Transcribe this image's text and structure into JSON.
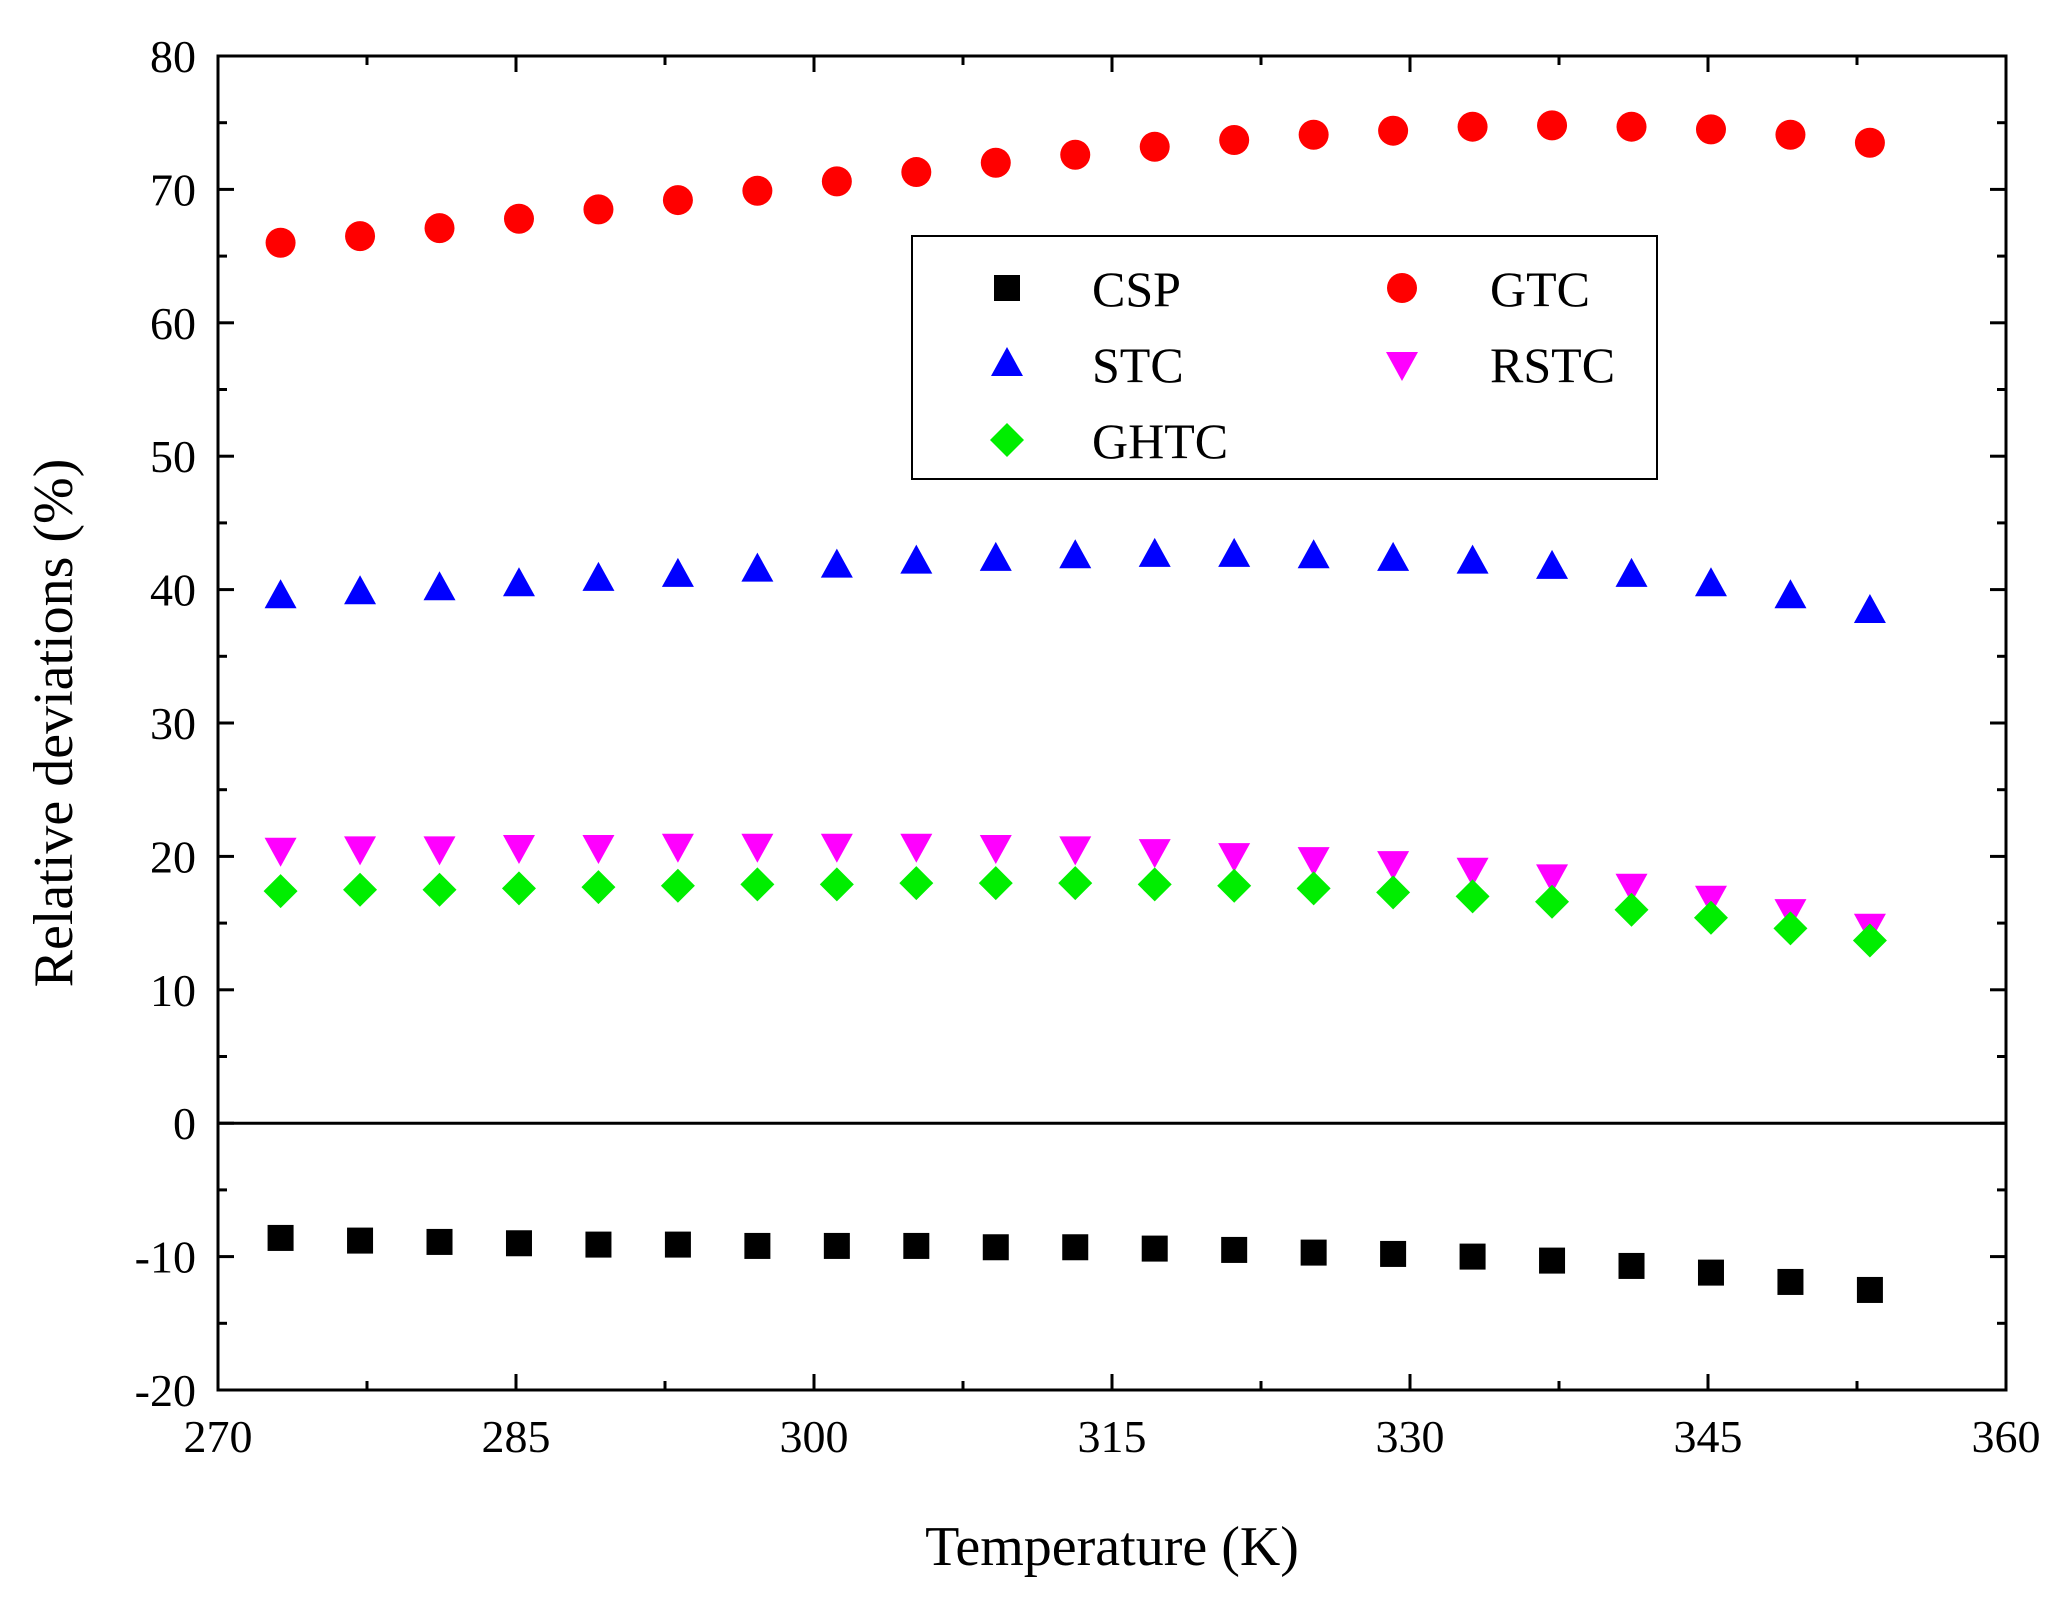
{
  "chart_data": {
    "type": "scatter",
    "title": "",
    "xlabel": "Temperature (K)",
    "ylabel": "Relative deviations (%)",
    "xlim": [
      270,
      360
    ],
    "ylim": [
      -20,
      80
    ],
    "x_ticks": [
      270,
      285,
      300,
      315,
      330,
      345,
      360
    ],
    "y_ticks": [
      -20,
      -10,
      0,
      10,
      20,
      30,
      40,
      50,
      60,
      70,
      80
    ],
    "x_tick_labels": [
      "270",
      "285",
      "300",
      "315",
      "330",
      "345",
      "360"
    ],
    "y_tick_labels": [
      "-20",
      "-10",
      "0",
      "10",
      "20",
      "30",
      "40",
      "50",
      "60",
      "70",
      "80"
    ],
    "zero_line": true,
    "legend_position": "top-center",
    "x": [
      273.15,
      277.15,
      281.15,
      285.15,
      289.15,
      293.15,
      297.15,
      301.15,
      305.15,
      309.15,
      313.15,
      317.15,
      321.15,
      325.15,
      329.15,
      333.15,
      337.15,
      341.15,
      345.15,
      349.15,
      353.15
    ],
    "series": [
      {
        "name": "CSP",
        "marker": "square",
        "color": "#000000",
        "values": [
          -8.6,
          -8.8,
          -8.9,
          -9.0,
          -9.1,
          -9.1,
          -9.2,
          -9.2,
          -9.2,
          -9.3,
          -9.3,
          -9.4,
          -9.5,
          -9.7,
          -9.8,
          -10.0,
          -10.3,
          -10.7,
          -11.2,
          -11.9,
          -12.5
        ]
      },
      {
        "name": "GTC",
        "marker": "circle",
        "color": "#ff0000",
        "values": [
          66.0,
          66.5,
          67.1,
          67.8,
          68.5,
          69.2,
          69.9,
          70.6,
          71.3,
          72.0,
          72.6,
          73.2,
          73.7,
          74.1,
          74.4,
          74.7,
          74.8,
          74.7,
          74.5,
          74.1,
          73.5
        ]
      },
      {
        "name": "STC",
        "marker": "triangle-up",
        "color": "#0000ff",
        "values": [
          39.5,
          39.8,
          40.1,
          40.4,
          40.8,
          41.1,
          41.5,
          41.8,
          42.1,
          42.3,
          42.5,
          42.6,
          42.6,
          42.5,
          42.3,
          42.1,
          41.7,
          41.1,
          40.4,
          39.5,
          38.4
        ]
      },
      {
        "name": "RSTC",
        "marker": "triangle-down",
        "color": "#ff00ff",
        "values": [
          20.5,
          20.6,
          20.6,
          20.7,
          20.7,
          20.8,
          20.8,
          20.8,
          20.8,
          20.7,
          20.6,
          20.4,
          20.1,
          19.8,
          19.5,
          19.0,
          18.5,
          17.8,
          16.9,
          15.9,
          14.8
        ]
      },
      {
        "name": "GHTC",
        "marker": "diamond",
        "color": "#00ee00",
        "values": [
          17.4,
          17.5,
          17.5,
          17.6,
          17.7,
          17.8,
          17.9,
          17.9,
          18.0,
          18.0,
          18.0,
          17.9,
          17.8,
          17.6,
          17.3,
          17.0,
          16.6,
          16.0,
          15.4,
          14.6,
          13.7
        ]
      }
    ],
    "legend": [
      {
        "label": "CSP",
        "marker": "square",
        "color": "#000000"
      },
      {
        "label": "GTC",
        "marker": "circle",
        "color": "#ff0000"
      },
      {
        "label": "STC",
        "marker": "triangle-up",
        "color": "#0000ff"
      },
      {
        "label": "RSTC",
        "marker": "triangle-down",
        "color": "#ff00ff"
      },
      {
        "label": "GHTC",
        "marker": "diamond",
        "color": "#00ee00"
      }
    ]
  }
}
